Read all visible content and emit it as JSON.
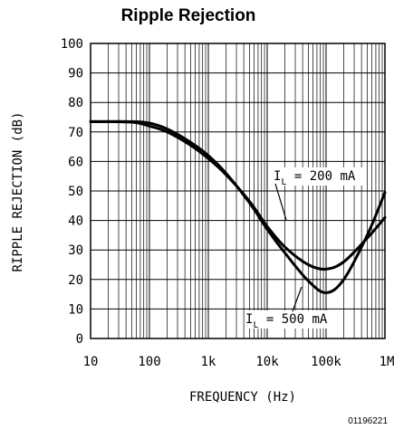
{
  "chart_data": {
    "type": "line",
    "title": "Ripple Rejection",
    "xlabel": "FREQUENCY (Hz)",
    "ylabel": "RIPPLE REJECTION (dB)",
    "x_scale": "log",
    "xlim": [
      10,
      1000000
    ],
    "ylim": [
      0,
      100
    ],
    "x_ticks": [
      10,
      100,
      1000,
      10000,
      100000,
      1000000
    ],
    "x_tick_labels": [
      "10",
      "100",
      "1k",
      "10k",
      "100k",
      "1M"
    ],
    "y_ticks": [
      0,
      10,
      20,
      30,
      40,
      50,
      60,
      70,
      80,
      90,
      100
    ],
    "y_tick_labels": [
      "0",
      "10",
      "20",
      "30",
      "40",
      "50",
      "60",
      "70",
      "80",
      "90",
      "100"
    ],
    "grid": true,
    "series": [
      {
        "name": "IL = 200 mA",
        "label_main": "I",
        "label_sub": "L",
        "label_rest": " = 200 mA",
        "x": [
          10,
          50,
          100,
          200,
          500,
          1000,
          2000,
          5000,
          10000,
          20000,
          50000,
          100000,
          200000,
          500000,
          1000000
        ],
        "y": [
          73.5,
          73.3,
          72,
          70,
          65.5,
          61,
          55.5,
          46.5,
          38,
          31,
          25,
          23.5,
          26,
          34,
          41
        ]
      },
      {
        "name": "IL = 500 mA",
        "label_main": "I",
        "label_sub": "L",
        "label_rest": " = 500 mA",
        "x": [
          10,
          50,
          100,
          200,
          500,
          1000,
          2000,
          5000,
          10000,
          20000,
          50000,
          100000,
          200000,
          500000,
          1000000
        ],
        "y": [
          73.5,
          73.5,
          73,
          71,
          66.5,
          62,
          56,
          46,
          37,
          29,
          19.5,
          15.5,
          20,
          35,
          49.5
        ]
      }
    ]
  },
  "figure_id": "01196221"
}
